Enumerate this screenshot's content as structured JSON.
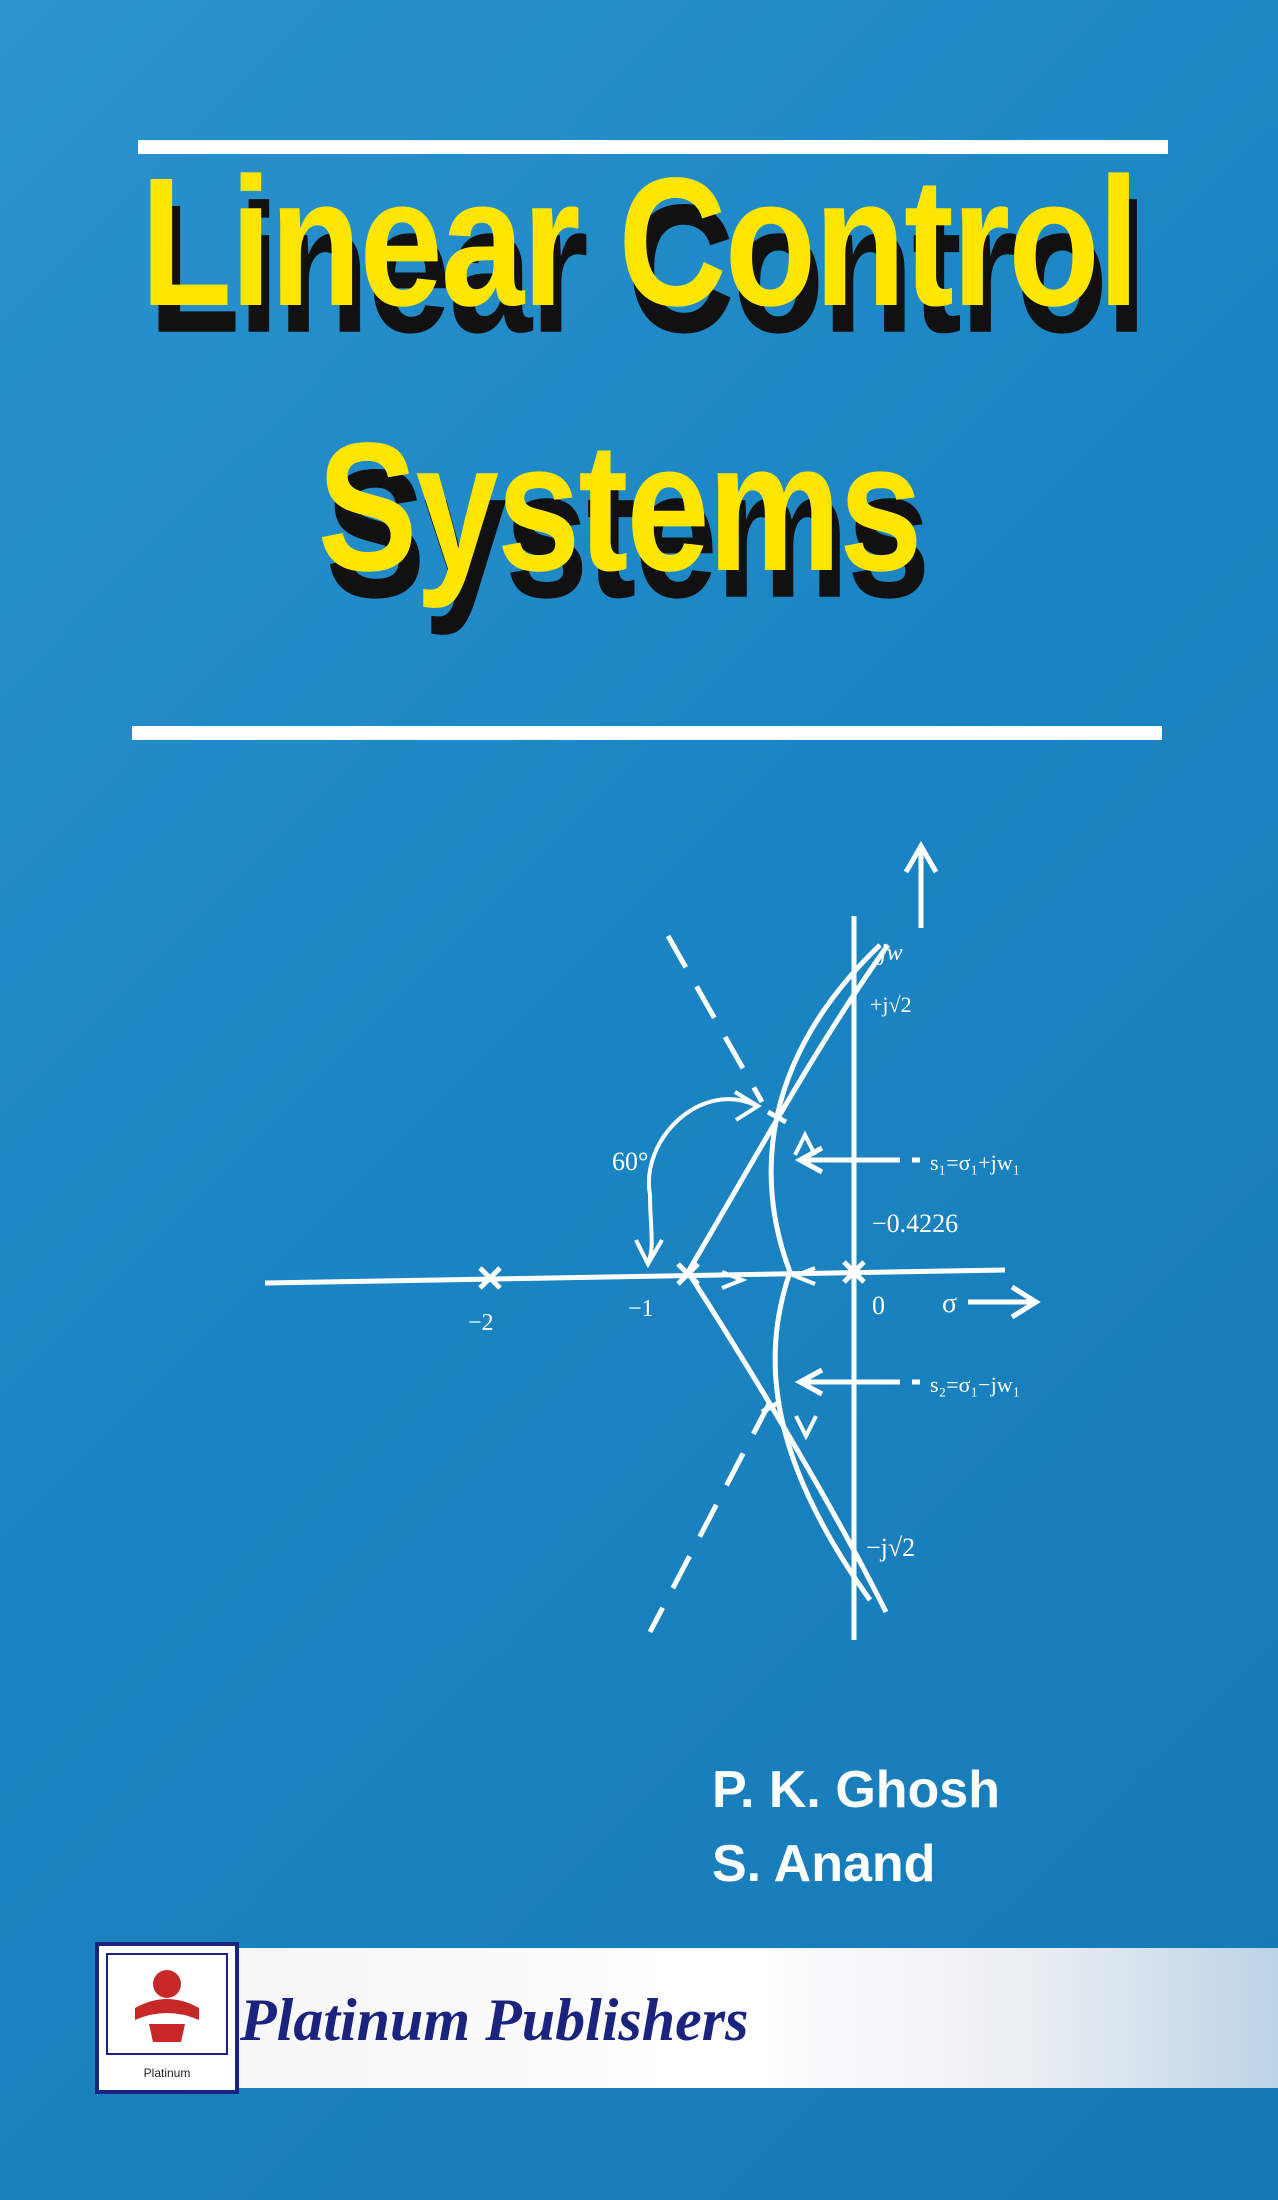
{
  "book": {
    "title_line1": "Linear Control",
    "title_line2": "Systems",
    "authors": [
      "P. K. Ghosh",
      "S. Anand"
    ],
    "publisher": "Platinum Publishers",
    "logo_text": "Platinum"
  },
  "root_locus": {
    "axis_imag_label": "jw",
    "axis_real_label": "σ",
    "pole_labels": [
      "−2",
      "−1",
      "0"
    ],
    "angle_label": "60°",
    "plus_j_label": "+j√2",
    "minus_j_label": "−j√2",
    "breakaway_label": "−0.4226",
    "s1_label": "s₁=σ₁+jw₁",
    "s2_label": "s₂=σ₁−jw₁"
  },
  "colors": {
    "background": "#1a86c4",
    "title": "#ffe600",
    "title_shadow": "#111111",
    "publisher_text": "#1a237e",
    "logo_red": "#c62828"
  }
}
